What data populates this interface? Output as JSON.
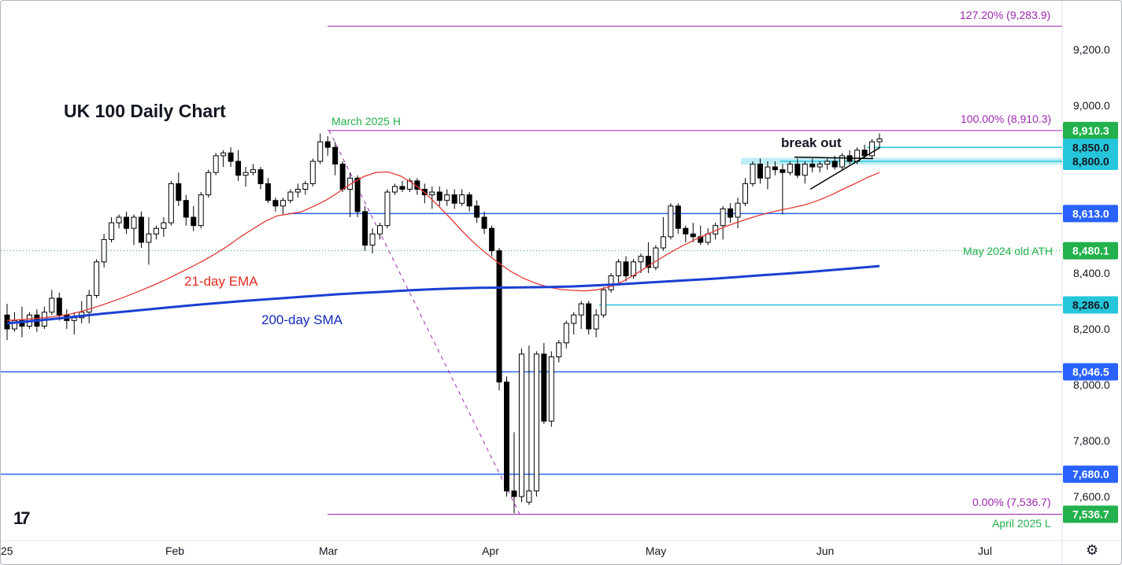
{
  "chart_data": {
    "type": "candlestick",
    "title": "UK 100 Daily Chart",
    "x_tick_labels": [
      "25",
      "Feb",
      "Mar",
      "Apr",
      "May",
      "Jun",
      "Jul"
    ],
    "y_tick_labels": [
      "9,200.0",
      "9,000.0",
      "8,400.0",
      "8,200.0",
      "8,000.0",
      "7,800.0",
      "7,600.0"
    ],
    "y_range": [
      7500,
      9330
    ],
    "price_tags": [
      {
        "label": "8,910.3",
        "color": "#22b14c"
      },
      {
        "label": "8,850.0",
        "color": "#26c6da"
      },
      {
        "label": "8,800.0",
        "color": "#26c6da"
      },
      {
        "label": "8,613.0",
        "color": "#2962ff"
      },
      {
        "label": "8,480.1",
        "color": "#22b14c"
      },
      {
        "label": "8,286.0",
        "color": "#26c6da"
      },
      {
        "label": "8,046.5",
        "color": "#2962ff"
      },
      {
        "label": "7,680.0",
        "color": "#2962ff"
      },
      {
        "label": "7,536.7",
        "color": "#22b14c"
      }
    ],
    "fibonacci": [
      {
        "label": "127.20% (9,283.9)",
        "value": 9283.9
      },
      {
        "label": "100.00% (8,910.3)",
        "value": 8910.3
      },
      {
        "label": "0.00% (7,536.7)",
        "value": 7536.7
      }
    ],
    "annotations": {
      "march_high": "March 2025 H",
      "april_low": "April 2025 L",
      "old_ath": "May 2024 old ATH",
      "ema": "21-day EMA",
      "sma": "200-day SMA",
      "breakout": "break out"
    },
    "candles": [
      [
        8250,
        8290,
        8160,
        8200
      ],
      [
        8200,
        8260,
        8190,
        8230
      ],
      [
        8230,
        8280,
        8170,
        8210
      ],
      [
        8210,
        8260,
        8200,
        8250
      ],
      [
        8250,
        8270,
        8190,
        8210
      ],
      [
        8210,
        8280,
        8200,
        8260
      ],
      [
        8260,
        8340,
        8250,
        8310
      ],
      [
        8310,
        8330,
        8230,
        8250
      ],
      [
        8250,
        8270,
        8200,
        8230
      ],
      [
        8230,
        8260,
        8180,
        8240
      ],
      [
        8240,
        8300,
        8220,
        8260
      ],
      [
        8260,
        8340,
        8220,
        8320
      ],
      [
        8320,
        8450,
        8310,
        8440
      ],
      [
        8440,
        8540,
        8420,
        8520
      ],
      [
        8520,
        8600,
        8510,
        8580
      ],
      [
        8580,
        8610,
        8560,
        8600
      ],
      [
        8600,
        8620,
        8540,
        8560
      ],
      [
        8560,
        8610,
        8500,
        8600
      ],
      [
        8600,
        8620,
        8490,
        8510
      ],
      [
        8510,
        8600,
        8430,
        8540
      ],
      [
        8540,
        8570,
        8520,
        8560
      ],
      [
        8560,
        8600,
        8530,
        8580
      ],
      [
        8580,
        8730,
        8570,
        8720
      ],
      [
        8720,
        8760,
        8640,
        8660
      ],
      [
        8660,
        8680,
        8570,
        8600
      ],
      [
        8600,
        8640,
        8550,
        8570
      ],
      [
        8570,
        8690,
        8560,
        8680
      ],
      [
        8680,
        8770,
        8670,
        8760
      ],
      [
        8760,
        8830,
        8750,
        8820
      ],
      [
        8820,
        8840,
        8780,
        8830
      ],
      [
        8830,
        8850,
        8780,
        8800
      ],
      [
        8800,
        8840,
        8730,
        8750
      ],
      [
        8750,
        8780,
        8710,
        8760
      ],
      [
        8760,
        8790,
        8750,
        8770
      ],
      [
        8770,
        8780,
        8700,
        8720
      ],
      [
        8720,
        8740,
        8650,
        8660
      ],
      [
        8660,
        8670,
        8620,
        8640
      ],
      [
        8640,
        8670,
        8610,
        8660
      ],
      [
        8660,
        8700,
        8650,
        8690
      ],
      [
        8690,
        8720,
        8670,
        8700
      ],
      [
        8700,
        8730,
        8680,
        8720
      ],
      [
        8720,
        8810,
        8710,
        8800
      ],
      [
        8800,
        8900,
        8790,
        8870
      ],
      [
        8870,
        8890,
        8820,
        8850
      ],
      [
        8850,
        8870,
        8750,
        8790
      ],
      [
        8790,
        8800,
        8690,
        8700
      ],
      [
        8700,
        8760,
        8600,
        8740
      ],
      [
        8740,
        8750,
        8600,
        8620
      ],
      [
        8620,
        8640,
        8480,
        8500
      ],
      [
        8500,
        8560,
        8470,
        8540
      ],
      [
        8540,
        8580,
        8520,
        8570
      ],
      [
        8570,
        8700,
        8560,
        8690
      ],
      [
        8690,
        8720,
        8680,
        8710
      ],
      [
        8710,
        8730,
        8690,
        8700
      ],
      [
        8700,
        8740,
        8690,
        8730
      ],
      [
        8730,
        8740,
        8680,
        8700
      ],
      [
        8700,
        8720,
        8650,
        8680
      ],
      [
        8680,
        8710,
        8630,
        8690
      ],
      [
        8690,
        8710,
        8640,
        8660
      ],
      [
        8660,
        8700,
        8640,
        8680
      ],
      [
        8680,
        8700,
        8630,
        8650
      ],
      [
        8650,
        8700,
        8640,
        8680
      ],
      [
        8680,
        8690,
        8620,
        8640
      ],
      [
        8640,
        8660,
        8580,
        8600
      ],
      [
        8600,
        8620,
        8540,
        8560
      ],
      [
        8560,
        8570,
        8460,
        8480
      ],
      [
        8480,
        8490,
        7980,
        8010
      ],
      [
        8010,
        8030,
        7600,
        7620
      ],
      [
        7620,
        7830,
        7540,
        7600
      ],
      [
        7600,
        8130,
        7580,
        8110
      ],
      [
        7580,
        8140,
        7570,
        7620
      ],
      [
        7620,
        8120,
        7600,
        8110
      ],
      [
        8110,
        8150,
        7860,
        7870
      ],
      [
        7870,
        8120,
        7850,
        8100
      ],
      [
        8100,
        8160,
        8080,
        8150
      ],
      [
        8150,
        8230,
        8130,
        8220
      ],
      [
        8220,
        8260,
        8180,
        8250
      ],
      [
        8250,
        8300,
        8200,
        8290
      ],
      [
        8290,
        8300,
        8180,
        8200
      ],
      [
        8200,
        8270,
        8170,
        8250
      ],
      [
        8250,
        8350,
        8240,
        8340
      ],
      [
        8340,
        8400,
        8330,
        8390
      ],
      [
        8390,
        8450,
        8360,
        8440
      ],
      [
        8440,
        8460,
        8370,
        8390
      ],
      [
        8390,
        8450,
        8380,
        8440
      ],
      [
        8440,
        8470,
        8400,
        8460
      ],
      [
        8460,
        8510,
        8400,
        8420
      ],
      [
        8420,
        8500,
        8410,
        8490
      ],
      [
        8490,
        8600,
        8480,
        8530
      ],
      [
        8530,
        8650,
        8520,
        8640
      ],
      [
        8640,
        8650,
        8540,
        8560
      ],
      [
        8560,
        8570,
        8510,
        8540
      ],
      [
        8540,
        8580,
        8510,
        8530
      ],
      [
        8530,
        8570,
        8500,
        8510
      ],
      [
        8510,
        8560,
        8500,
        8540
      ],
      [
        8540,
        8580,
        8520,
        8570
      ],
      [
        8570,
        8640,
        8520,
        8630
      ],
      [
        8630,
        8650,
        8580,
        8600
      ],
      [
        8600,
        8670,
        8560,
        8650
      ],
      [
        8650,
        8740,
        8640,
        8720
      ],
      [
        8720,
        8800,
        8710,
        8790
      ],
      [
        8790,
        8810,
        8720,
        8740
      ],
      [
        8740,
        8800,
        8700,
        8780
      ],
      [
        8780,
        8800,
        8750,
        8770
      ],
      [
        8770,
        8790,
        8610,
        8760
      ],
      [
        8760,
        8800,
        8750,
        8790
      ],
      [
        8790,
        8810,
        8740,
        8750
      ],
      [
        8750,
        8800,
        8720,
        8790
      ],
      [
        8790,
        8810,
        8760,
        8780
      ],
      [
        8780,
        8800,
        8760,
        8790
      ],
      [
        8790,
        8810,
        8770,
        8800
      ],
      [
        8800,
        8820,
        8770,
        8780
      ],
      [
        8780,
        8830,
        8770,
        8820
      ],
      [
        8820,
        8840,
        8790,
        8800
      ],
      [
        8800,
        8850,
        8790,
        8840
      ],
      [
        8840,
        8860,
        8810,
        8820
      ],
      [
        8820,
        8880,
        8810,
        8870
      ],
      [
        8870,
        8900,
        8850,
        8880
      ]
    ],
    "ema_21": [
      8230,
      8233,
      8236,
      8240,
      8245,
      8252,
      8262,
      8275,
      8290,
      8305,
      8322,
      8340,
      8358,
      8378,
      8400,
      8422,
      8445,
      8470,
      8498,
      8530,
      8558,
      8585,
      8605,
      8612,
      8620,
      8640,
      8662,
      8690,
      8720,
      8745,
      8760,
      8762,
      8748,
      8722,
      8688,
      8645,
      8600,
      8552,
      8508,
      8470,
      8436,
      8406,
      8382,
      8364,
      8350,
      8342,
      8338,
      8336,
      8340,
      8350,
      8368,
      8392,
      8420,
      8448,
      8474,
      8498,
      8520,
      8540,
      8558,
      8575,
      8590,
      8604,
      8616,
      8626,
      8635,
      8645,
      8660,
      8678,
      8700,
      8720,
      8742,
      8760
    ],
    "sma_200": [
      8220,
      8228,
      8236,
      8245,
      8254,
      8262,
      8270,
      8278,
      8286,
      8293,
      8300,
      8306,
      8312,
      8318,
      8324,
      8329,
      8333,
      8338,
      8342,
      8345,
      8347,
      8348,
      8349,
      8350,
      8352,
      8356,
      8360,
      8365,
      8370,
      8375,
      8380,
      8386,
      8392,
      8398,
      8404,
      8411,
      8418,
      8425
    ]
  }
}
